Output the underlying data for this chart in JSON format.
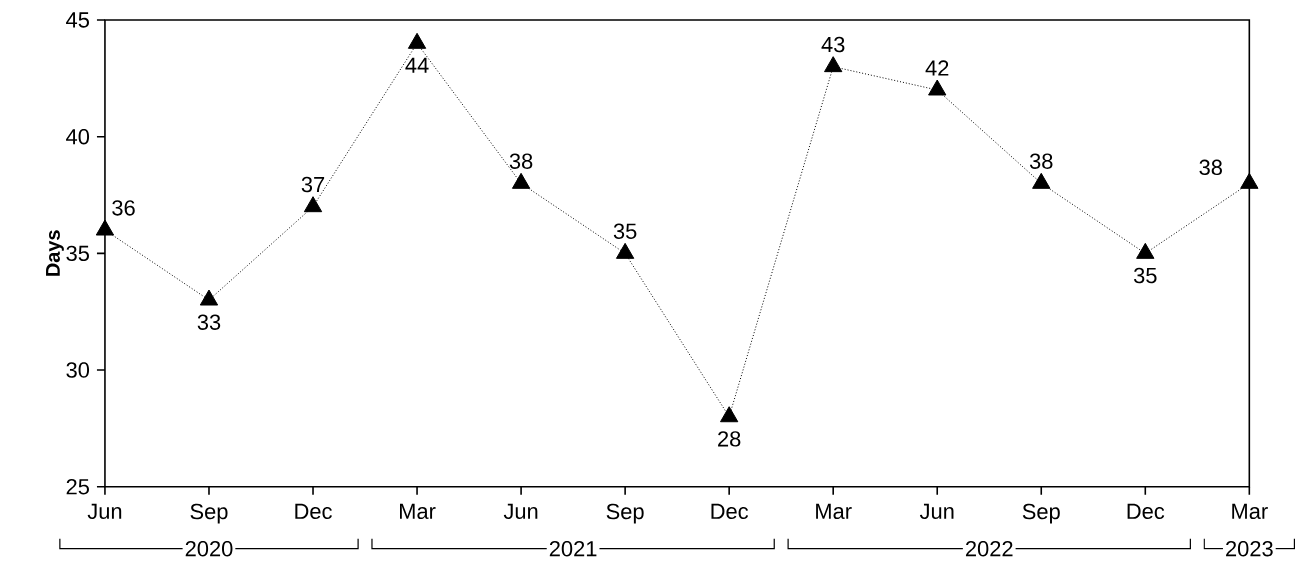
{
  "chart_data": {
    "type": "line",
    "ylabel": "Days",
    "x": [
      "2020-06",
      "2020-09",
      "2020-12",
      "2021-03",
      "2021-06",
      "2021-09",
      "2021-12",
      "2022-03",
      "2022-06",
      "2022-09",
      "2022-12",
      "2023-03"
    ],
    "values": [
      36,
      33,
      37,
      44,
      38,
      35,
      28,
      43,
      42,
      38,
      35,
      38
    ],
    "color": "#000000",
    "marker": "triangle",
    "line_style": "dotted",
    "data_labels": true,
    "grid": false,
    "xlim": [
      "2020-06",
      "2023-03"
    ],
    "ylim": [
      25,
      45
    ],
    "yticks": [
      25,
      30,
      35,
      40,
      45
    ],
    "xticks": [
      {
        "value": "2020-06",
        "label": "Jun"
      },
      {
        "value": "2020-09",
        "label": "Sep"
      },
      {
        "value": "2020-12",
        "label": "Dec"
      },
      {
        "value": "2021-03",
        "label": "Mar"
      },
      {
        "value": "2021-06",
        "label": "Jun"
      },
      {
        "value": "2021-09",
        "label": "Sep"
      },
      {
        "value": "2021-12",
        "label": "Dec"
      },
      {
        "value": "2022-03",
        "label": "Mar"
      },
      {
        "value": "2022-06",
        "label": "Jun"
      },
      {
        "value": "2022-09",
        "label": "Sep"
      },
      {
        "value": "2022-12",
        "label": "Dec"
      },
      {
        "value": "2023-03",
        "label": "Mar"
      }
    ],
    "annotations": [
      "2020",
      "2021",
      "2022",
      "2023"
    ]
  }
}
